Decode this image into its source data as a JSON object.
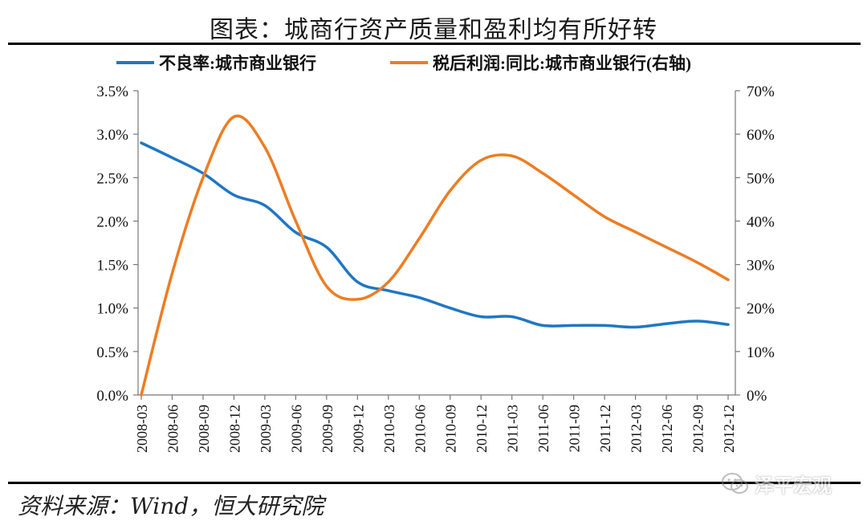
{
  "title": "图表：城商行资产质量和盈利均有所好转",
  "source": "资料来源：Wind，恒大研究院",
  "watermark": "泽平宏观",
  "chart_data": {
    "type": "line",
    "categories": [
      "2008-03",
      "2008-06",
      "2008-09",
      "2008-12",
      "2009-03",
      "2009-06",
      "2009-09",
      "2009-12",
      "2010-03",
      "2010-06",
      "2010-09",
      "2010-12",
      "2011-03",
      "2011-06",
      "2011-09",
      "2011-12",
      "2012-03",
      "2012-06",
      "2012-09",
      "2012-12"
    ],
    "series": [
      {
        "name": "不良率:城市商业银行",
        "axis": "left",
        "color": "#1f77c4",
        "values": [
          2.9,
          2.73,
          2.55,
          2.3,
          2.18,
          1.87,
          1.7,
          1.3,
          1.2,
          1.12,
          1.0,
          0.9,
          0.9,
          0.8,
          0.8,
          0.8,
          0.78,
          0.82,
          0.85,
          0.81
        ]
      },
      {
        "name": "税后利润:同比:城市商业银行(右轴)",
        "axis": "right",
        "color": "#ed7d23",
        "values": [
          0,
          28,
          50,
          64,
          57,
          40,
          25,
          22,
          26,
          36,
          47,
          54,
          55,
          51,
          46,
          41,
          37.5,
          34,
          30.5,
          26.5
        ]
      }
    ],
    "y_left": {
      "min": 0,
      "max": 3.5,
      "step": 0.5,
      "ticks": [
        "0.0%",
        "0.5%",
        "1.0%",
        "1.5%",
        "2.0%",
        "2.5%",
        "3.0%",
        "3.5%"
      ]
    },
    "y_right": {
      "min": 0,
      "max": 70,
      "step": 10,
      "ticks": [
        "0%",
        "10%",
        "20%",
        "30%",
        "40%",
        "50%",
        "60%",
        "70%"
      ]
    },
    "legend": [
      "不良率:城市商业银行",
      "税后利润:同比:城市商业银行(右轴)"
    ],
    "legend_position": "top-center",
    "grid": false
  }
}
